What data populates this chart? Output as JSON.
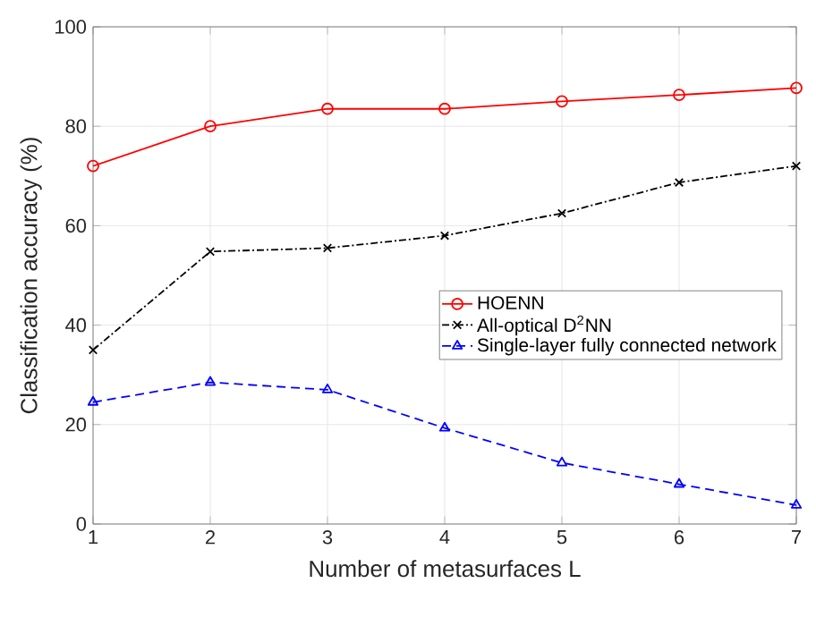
{
  "chart_data": {
    "type": "line",
    "xlabel": "Number of metasurfaces L",
    "ylabel": "Classification accuracy (%)",
    "x": [
      1,
      2,
      3,
      4,
      5,
      6,
      7
    ],
    "series": [
      {
        "name": "HOENN",
        "color": "#ff0000",
        "marker": "circle",
        "line_style": "solid",
        "values": [
          72,
          80,
          83.5,
          83.5,
          85,
          86.3,
          87.7
        ]
      },
      {
        "name": "All-optical D$^{2}$NN",
        "color": "#000000",
        "marker": "cross",
        "line_style": "dashdot",
        "values": [
          35,
          54.8,
          55.5,
          58,
          62.5,
          68.7,
          72
        ]
      },
      {
        "name": "Single-layer fully connected network",
        "color": "#0000ff",
        "marker": "triangle",
        "line_style": "dashed",
        "values": [
          24.5,
          28.5,
          27,
          19.3,
          12.3,
          8,
          3.8
        ]
      }
    ],
    "xlim": [
      1,
      7
    ],
    "xticks": [
      1,
      2,
      3,
      4,
      5,
      6,
      7
    ],
    "ylim": [
      0,
      100
    ],
    "yticks": [
      0,
      20,
      40,
      60,
      80,
      100
    ],
    "grid": true,
    "legend": "center right"
  }
}
